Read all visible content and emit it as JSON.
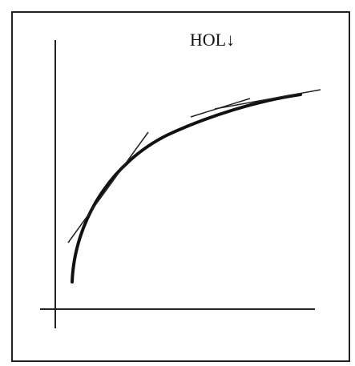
{
  "label": "HOL↓"
}
